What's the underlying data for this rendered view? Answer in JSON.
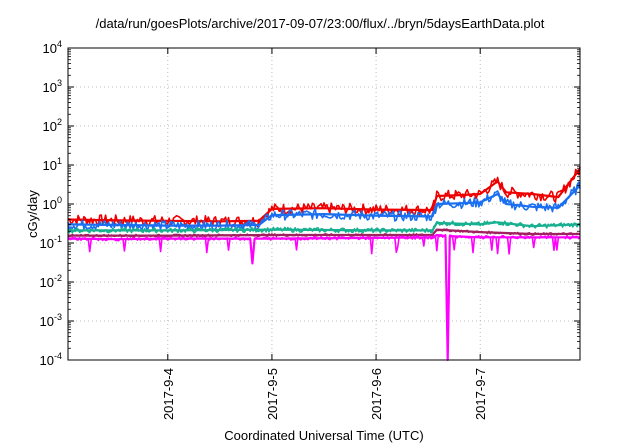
{
  "chart_data": {
    "type": "line",
    "title": "/data/run/goesPlots/archive/2017-09-07/23:00/flux/../bryn/5daysEarthData.plot",
    "xlabel": "Coordinated Universal Time (UTC)",
    "ylabel": "cGy/day",
    "y_scale": "log",
    "ylim": [
      0.0001,
      10000
    ],
    "xlim": [
      "2017-09-03 01:00",
      "2017-09-07 23:00"
    ],
    "grid": true,
    "x_ticks": [
      "2017-9-4",
      "2017-9-5",
      "2017-9-6",
      "2017-9-7"
    ],
    "y_ticks": [
      {
        "value": 0.0001,
        "base": "10",
        "exp": "-4"
      },
      {
        "value": 0.001,
        "base": "10",
        "exp": "-3"
      },
      {
        "value": 0.01,
        "base": "10",
        "exp": "-2"
      },
      {
        "value": 0.1,
        "base": "10",
        "exp": "-1"
      },
      {
        "value": 1,
        "base": "10",
        "exp": "0"
      },
      {
        "value": 10,
        "base": "10",
        "exp": "1"
      },
      {
        "value": 100,
        "base": "10",
        "exp": "2"
      },
      {
        "value": 1000,
        "base": "10",
        "exp": "3"
      },
      {
        "value": 10000,
        "base": "10",
        "exp": "4"
      }
    ],
    "series": [
      {
        "color": "#ee0000",
        "points": [
          [
            "2017-09-03 01:00",
            0.4
          ],
          [
            "2017-09-03 12:00",
            0.38
          ],
          [
            "2017-09-04 00:00",
            0.37
          ],
          [
            "2017-09-04 12:00",
            0.36
          ],
          [
            "2017-09-04 21:00",
            0.37
          ],
          [
            "2017-09-05 00:00",
            0.75
          ],
          [
            "2017-09-05 12:00",
            0.78
          ],
          [
            "2017-09-06 00:00",
            0.72
          ],
          [
            "2017-09-06 12:00",
            0.7
          ],
          [
            "2017-09-06 13:00",
            0.7
          ],
          [
            "2017-09-06 14:00",
            1.6
          ],
          [
            "2017-09-06 20:00",
            1.7
          ],
          [
            "2017-09-07 00:00",
            1.8
          ],
          [
            "2017-09-07 04:00",
            3.8
          ],
          [
            "2017-09-07 06:00",
            2.0
          ],
          [
            "2017-09-07 12:00",
            1.8
          ],
          [
            "2017-09-07 18:00",
            1.5
          ],
          [
            "2017-09-07 23:00",
            8.0
          ]
        ]
      },
      {
        "color": "#1a6ef0",
        "points": [
          [
            "2017-09-03 01:00",
            0.3
          ],
          [
            "2017-09-03 12:00",
            0.29
          ],
          [
            "2017-09-04 00:00",
            0.28
          ],
          [
            "2017-09-04 12:00",
            0.28
          ],
          [
            "2017-09-04 21:00",
            0.29
          ],
          [
            "2017-09-05 00:00",
            0.52
          ],
          [
            "2017-09-05 12:00",
            0.55
          ],
          [
            "2017-09-06 00:00",
            0.5
          ],
          [
            "2017-09-06 12:00",
            0.48
          ],
          [
            "2017-09-06 13:00",
            0.48
          ],
          [
            "2017-09-06 14:00",
            1.0
          ],
          [
            "2017-09-06 20:00",
            1.05
          ],
          [
            "2017-09-07 00:00",
            1.1
          ],
          [
            "2017-09-07 04:00",
            1.8
          ],
          [
            "2017-09-07 06:00",
            1.0
          ],
          [
            "2017-09-07 12:00",
            0.85
          ],
          [
            "2017-09-07 18:00",
            0.8
          ],
          [
            "2017-09-07 23:00",
            3.0
          ]
        ]
      },
      {
        "color": "#18b090",
        "points": [
          [
            "2017-09-03 01:00",
            0.21
          ],
          [
            "2017-09-04 00:00",
            0.21
          ],
          [
            "2017-09-05 00:00",
            0.22
          ],
          [
            "2017-09-06 00:00",
            0.21
          ],
          [
            "2017-09-06 13:00",
            0.21
          ],
          [
            "2017-09-06 14:00",
            0.33
          ],
          [
            "2017-09-07 00:00",
            0.3
          ],
          [
            "2017-09-07 04:00",
            0.34
          ],
          [
            "2017-09-07 12:00",
            0.27
          ],
          [
            "2017-09-07 23:00",
            0.3
          ]
        ]
      },
      {
        "color": "#a02060",
        "points": [
          [
            "2017-09-03 01:00",
            0.155
          ],
          [
            "2017-09-04 00:00",
            0.155
          ],
          [
            "2017-09-05 00:00",
            0.16
          ],
          [
            "2017-09-06 00:00",
            0.16
          ],
          [
            "2017-09-06 13:00",
            0.16
          ],
          [
            "2017-09-06 14:00",
            0.22
          ],
          [
            "2017-09-07 00:00",
            0.19
          ],
          [
            "2017-09-07 12:00",
            0.17
          ],
          [
            "2017-09-07 23:00",
            0.17
          ]
        ]
      },
      {
        "color": "#ff00ff",
        "points": [
          [
            "2017-09-03 01:00",
            0.13
          ],
          [
            "2017-09-03 12:00",
            0.125
          ],
          [
            "2017-09-04 00:00",
            0.13
          ],
          [
            "2017-09-04 19:00",
            0.13
          ],
          [
            "2017-09-04 19:30",
            0.03
          ],
          [
            "2017-09-04 20:00",
            0.13
          ],
          [
            "2017-09-05 00:00",
            0.13
          ],
          [
            "2017-09-06 00:00",
            0.135
          ],
          [
            "2017-09-06 13:00",
            0.14
          ],
          [
            "2017-09-06 14:00",
            0.16
          ],
          [
            "2017-09-06 16:00",
            0.15
          ],
          [
            "2017-09-06 16:30",
            0.0001
          ],
          [
            "2017-09-06 17:00",
            0.15
          ],
          [
            "2017-09-07 00:00",
            0.14
          ],
          [
            "2017-09-07 23:00",
            0.14
          ]
        ]
      }
    ]
  }
}
